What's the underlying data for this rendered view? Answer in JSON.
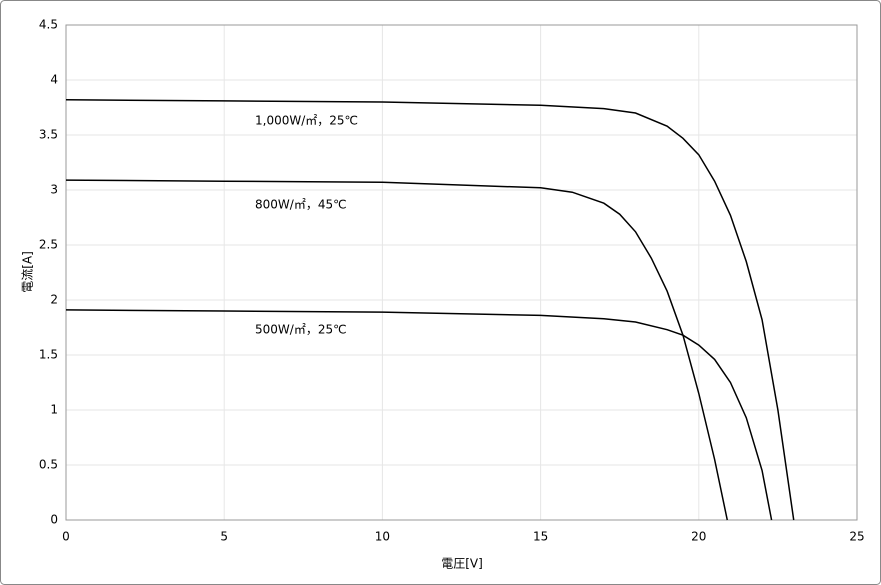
{
  "chart_data": {
    "type": "line",
    "x_label": "電圧[V]",
    "y_label": "電流[A]",
    "xlim": [
      0,
      25
    ],
    "xticks": [
      0,
      5,
      10,
      15,
      20,
      25
    ],
    "ylim": [
      0,
      4.5
    ],
    "yticks": [
      0,
      0.5,
      1,
      1.5,
      2,
      2.5,
      3,
      3.5,
      4,
      4.5
    ],
    "grid": true,
    "series": [
      {
        "name": "1,000W/㎡，25℃",
        "color": "#000000",
        "x": [
          0,
          5,
          10,
          15,
          17,
          18,
          19,
          19.5,
          20,
          20.5,
          21,
          21.5,
          22,
          22.5,
          23
        ],
        "values": [
          3.82,
          3.81,
          3.8,
          3.77,
          3.74,
          3.7,
          3.58,
          3.47,
          3.32,
          3.08,
          2.77,
          2.35,
          1.82,
          1.0,
          0
        ]
      },
      {
        "name": "800W/㎡，45℃",
        "color": "#000000",
        "x": [
          0,
          5,
          10,
          15,
          16,
          17,
          17.5,
          18,
          18.5,
          19,
          19.5,
          20,
          20.5,
          20.9
        ],
        "values": [
          3.09,
          3.08,
          3.07,
          3.02,
          2.98,
          2.88,
          2.78,
          2.62,
          2.38,
          2.08,
          1.68,
          1.15,
          0.55,
          0
        ]
      },
      {
        "name": "500W/㎡，25℃",
        "color": "#000000",
        "x": [
          0,
          5,
          10,
          15,
          17,
          18,
          19,
          19.5,
          20,
          20.5,
          21,
          21.5,
          22,
          22.3
        ],
        "values": [
          1.91,
          1.9,
          1.89,
          1.86,
          1.83,
          1.8,
          1.73,
          1.68,
          1.59,
          1.46,
          1.25,
          0.93,
          0.45,
          0
        ]
      }
    ]
  }
}
